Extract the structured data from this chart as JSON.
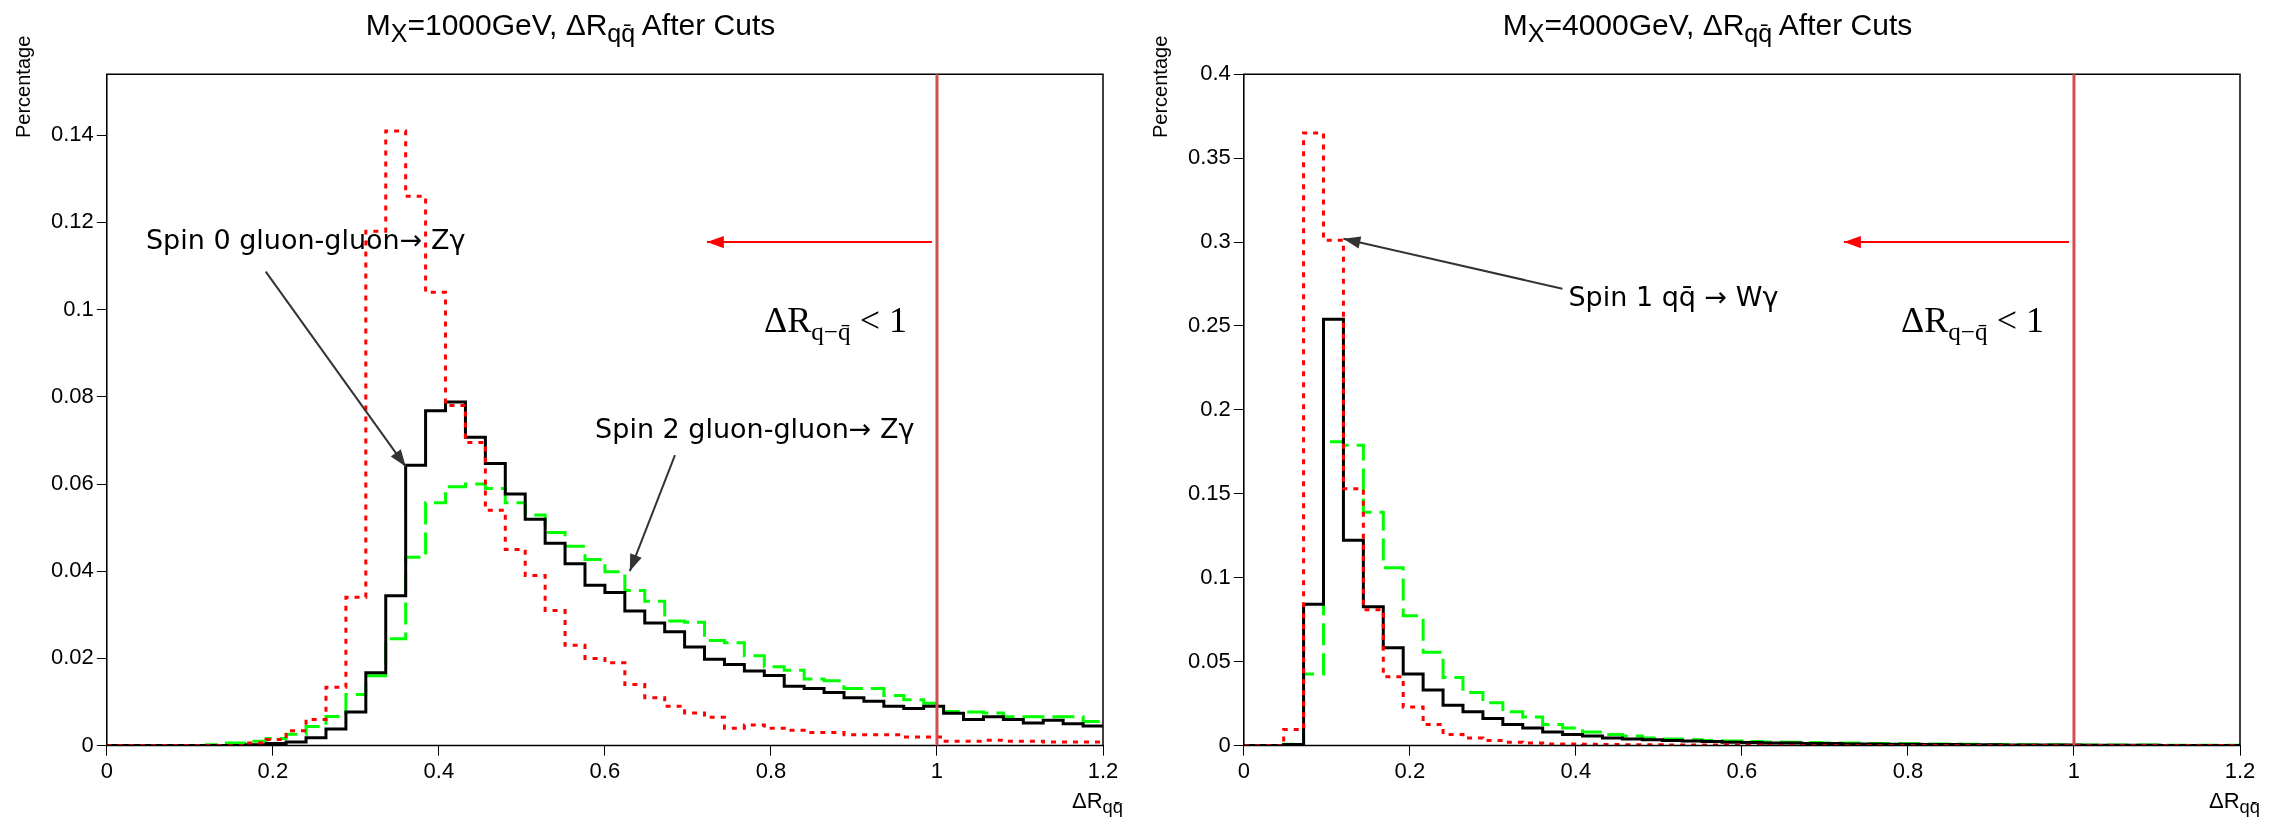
{
  "chart_data": [
    {
      "type": "histogram",
      "title": "M$_{X}$=1000GeV, ΔR$_{qq̄}$ After Cuts",
      "xlabel": "ΔR$_{qq̄}$",
      "ylabel": "Percentage",
      "bins": [
        0,
        0.024,
        0.048,
        0.072,
        0.096,
        0.12,
        0.144,
        0.168,
        0.192,
        0.216,
        0.24,
        0.264,
        0.288,
        0.312,
        0.336,
        0.36,
        0.384,
        0.408,
        0.432,
        0.456,
        0.48,
        0.504,
        0.528,
        0.552,
        0.576,
        0.6,
        0.624,
        0.648,
        0.672,
        0.696,
        0.72,
        0.744,
        0.768,
        0.792,
        0.816,
        0.84,
        0.864,
        0.888,
        0.912,
        0.936,
        0.96,
        0.984,
        1.008,
        1.032,
        1.056,
        1.08,
        1.104,
        1.128,
        1.152,
        1.176,
        1.2
      ],
      "series": [
        {
          "color": "#ff0000",
          "line_style": "dotted",
          "values": [
            0,
            0,
            0,
            0,
            0,
            0,
            0,
            0.0006,
            0.0014,
            0.0034,
            0.006,
            0.0134,
            0.034,
            0.118,
            0.141,
            0.126,
            0.104,
            0.078,
            0.0695,
            0.054,
            0.045,
            0.039,
            0.031,
            0.023,
            0.02,
            0.019,
            0.014,
            0.011,
            0.009,
            0.0075,
            0.0065,
            0.004,
            0.0047,
            0.004,
            0.0035,
            0.003,
            0.003,
            0.0025,
            0.0025,
            0.0025,
            0.002,
            0.002,
            0.001,
            0.001,
            0.0012,
            0.001,
            0.001,
            0.0008,
            0.0008,
            0.0008
          ]
        },
        {
          "color": "#000000",
          "line_style": "solid",
          "values": [
            0,
            0,
            0,
            0,
            0,
            0,
            0,
            0.0002,
            0.0005,
            0.0008,
            0.0018,
            0.0038,
            0.0077,
            0.0167,
            0.0344,
            0.0643,
            0.0768,
            0.0788,
            0.0707,
            0.0647,
            0.0577,
            0.0519,
            0.0464,
            0.0417,
            0.0368,
            0.0351,
            0.0309,
            0.0281,
            0.0261,
            0.0226,
            0.0198,
            0.0186,
            0.0171,
            0.0161,
            0.0136,
            0.0131,
            0.0122,
            0.011,
            0.0102,
            0.009,
            0.0085,
            0.009,
            0.0074,
            0.006,
            0.0066,
            0.006,
            0.0052,
            0.0058,
            0.005,
            0.0045
          ]
        },
        {
          "color": "#00ff00",
          "line_style": "dashed",
          "values": [
            0,
            0,
            0,
            0,
            0,
            0.0002,
            0.0006,
            0.001,
            0.0016,
            0.0026,
            0.0044,
            0.0067,
            0.0117,
            0.016,
            0.0245,
            0.0432,
            0.0557,
            0.0594,
            0.06,
            0.059,
            0.0557,
            0.0529,
            0.0489,
            0.0457,
            0.0427,
            0.0399,
            0.0356,
            0.0331,
            0.0286,
            0.0283,
            0.0241,
            0.0236,
            0.0206,
            0.0181,
            0.0173,
            0.0153,
            0.0149,
            0.0131,
            0.0131,
            0.0115,
            0.0105,
            0.0097,
            0.0078,
            0.0077,
            0.0075,
            0.0066,
            0.0066,
            0.0066,
            0.0066,
            0.0055
          ]
        }
      ],
      "xlim": [
        0,
        1.2
      ],
      "xticks": [
        0,
        0.2,
        0.4,
        0.6,
        0.8,
        1,
        1.2
      ],
      "ylim": [
        0,
        0.154
      ],
      "yticks": [
        0,
        0.02,
        0.04,
        0.06,
        0.08,
        0.1,
        0.12,
        0.14
      ],
      "ref_lines": [
        {
          "axis": "x",
          "value": 1,
          "label": "ΔR$_{q−q̄}$ < 1",
          "color": "#d05050"
        }
      ],
      "annotations": [
        {
          "text": "Spin 0 gluon-gluon→ Zγ",
          "x": 0.36,
          "y": 0.064
        },
        {
          "text": "Spin 2 gluon-gluon→ Zγ",
          "x": 0.63,
          "y": 0.04
        }
      ]
    },
    {
      "type": "histogram",
      "title": "M$_{X}$=4000GeV, ΔR$_{qq̄}$ After Cuts",
      "xlabel": "ΔR$_{qq̄}$",
      "ylabel": "Percentage",
      "bins": [
        0,
        0.024,
        0.048,
        0.072,
        0.096,
        0.12,
        0.144,
        0.168,
        0.192,
        0.216,
        0.24,
        0.264,
        0.288,
        0.312,
        0.336,
        0.36,
        0.384,
        0.408,
        0.432,
        0.456,
        0.48,
        0.504,
        0.528,
        0.552,
        0.576,
        0.6,
        0.624,
        0.648,
        0.672,
        0.696,
        0.72,
        0.744,
        0.768,
        0.792,
        0.816,
        0.84,
        0.864,
        0.888,
        0.912,
        0.936,
        0.96,
        0.984,
        1.008,
        1.032,
        1.056,
        1.08,
        1.104,
        1.128,
        1.152,
        1.176,
        1.2
      ],
      "series": [
        {
          "color": "#ff0000",
          "line_style": "dotted",
          "values": [
            0,
            0,
            0.0096,
            0.365,
            0.301,
            0.153,
            0.081,
            0.041,
            0.023,
            0.0126,
            0.0066,
            0.0045,
            0.003,
            0.002,
            0.0015,
            0.001,
            0.001,
            0.0008,
            0.0006,
            0.0005,
            0.0005,
            0.0004,
            0.0004,
            0.0003,
            0.0003,
            0.0002,
            0,
            0,
            0,
            0,
            0,
            0,
            0,
            0,
            0,
            0,
            0,
            0,
            0,
            0,
            0,
            0,
            0,
            0,
            0,
            0,
            0,
            0,
            0,
            0
          ]
        },
        {
          "color": "#000000",
          "line_style": "solid",
          "values": [
            0,
            0,
            0.0006,
            0.0842,
            0.254,
            0.1224,
            0.0827,
            0.0583,
            0.0427,
            0.0331,
            0.024,
            0.0201,
            0.0162,
            0.0126,
            0.0105,
            0.0081,
            0.0066,
            0.0057,
            0.0045,
            0.004,
            0.0035,
            0.003,
            0.0028,
            0.0025,
            0.002,
            0.0018,
            0.0015,
            0.0015,
            0.0012,
            0.0012,
            0.001,
            0.001,
            0.0008,
            0.0008,
            0.0007,
            0.0006,
            0.0005,
            0.0005,
            0.0004,
            0.0004,
            0.0003,
            0.0003,
            0.0002,
            0.0002,
            0.0002,
            0.0002,
            0.0001,
            0.0001,
            0.0001,
            0.0001
          ]
        },
        {
          "color": "#00ff00",
          "line_style": "dashed",
          "values": [
            0,
            0,
            0.0008,
            0.0427,
            0.181,
            0.179,
            0.139,
            0.1059,
            0.0773,
            0.0556,
            0.0406,
            0.0316,
            0.0256,
            0.0201,
            0.0171,
            0.0126,
            0.0105,
            0.0081,
            0.0066,
            0.0057,
            0.0045,
            0.004,
            0.0035,
            0.003,
            0.0028,
            0.0025,
            0.0022,
            0.002,
            0.0018,
            0.0016,
            0.0015,
            0.0013,
            0.0012,
            0.0011,
            0.001,
            0.0009,
            0.0008,
            0.0007,
            0.0006,
            0.0005,
            0.0005,
            0.0004,
            0.0004,
            0.0003,
            0.0003,
            0.0003,
            0.0002,
            0.0002,
            0.0002,
            0.0002
          ]
        }
      ],
      "xlim": [
        0,
        1.2
      ],
      "xticks": [
        0,
        0.2,
        0.4,
        0.6,
        0.8,
        1,
        1.2
      ],
      "ylim": [
        0,
        0.4
      ],
      "yticks": [
        0,
        0.05,
        0.1,
        0.15,
        0.2,
        0.25,
        0.3,
        0.35,
        0.4
      ],
      "ref_lines": [
        {
          "axis": "x",
          "value": 1,
          "label": "ΔR$_{q−q̄}$ < 1",
          "color": "#d05050"
        }
      ],
      "annotations": [
        {
          "text": "Spin 1 qq̄ → Wγ",
          "x": 0.12,
          "y": 0.302
        }
      ]
    }
  ]
}
